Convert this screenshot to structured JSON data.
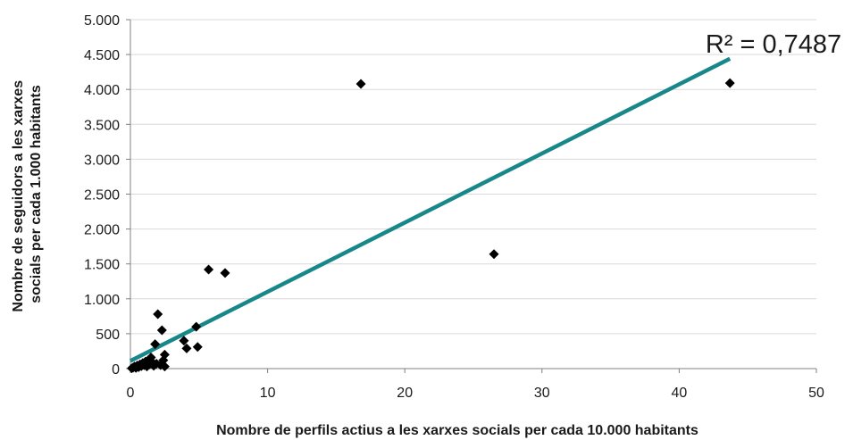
{
  "chart_data": {
    "type": "scatter",
    "title": "",
    "xlabel": "Nombre de perfils actius a les xarxes socials per cada 10.000 habitants",
    "ylabel_lines": [
      "Nombre de seguidors a les xarxes",
      "socials per cada 1.000 habitants"
    ],
    "xlim": [
      0,
      50
    ],
    "ylim": [
      0,
      5000
    ],
    "x_ticks": [
      0,
      10,
      20,
      30,
      40,
      50
    ],
    "x_tick_labels": [
      "0",
      "10",
      "20",
      "30",
      "40",
      "50"
    ],
    "y_ticks": [
      0,
      500,
      1000,
      1500,
      2000,
      2500,
      3000,
      3500,
      4000,
      4500,
      5000
    ],
    "y_tick_labels": [
      "0",
      "500",
      "1.000",
      "1.500",
      "2.000",
      "2.500",
      "3.000",
      "3.500",
      "4.000",
      "4.500",
      "5.000"
    ],
    "grid": "horizontal",
    "legend": "none",
    "marker": "diamond",
    "marker_color": "#000000",
    "trendline_color": "#17878a",
    "points": [
      {
        "x": 0.1,
        "y": 5
      },
      {
        "x": 0.2,
        "y": 15
      },
      {
        "x": 0.3,
        "y": 30
      },
      {
        "x": 0.4,
        "y": 10
      },
      {
        "x": 0.5,
        "y": 45
      },
      {
        "x": 0.6,
        "y": 20
      },
      {
        "x": 0.7,
        "y": 60
      },
      {
        "x": 0.8,
        "y": 35
      },
      {
        "x": 0.9,
        "y": 80
      },
      {
        "x": 1.0,
        "y": 50
      },
      {
        "x": 1.1,
        "y": 100
      },
      {
        "x": 1.2,
        "y": 30
      },
      {
        "x": 1.3,
        "y": 120
      },
      {
        "x": 1.4,
        "y": 60
      },
      {
        "x": 1.5,
        "y": 160
      },
      {
        "x": 1.6,
        "y": 90
      },
      {
        "x": 1.7,
        "y": 40
      },
      {
        "x": 1.8,
        "y": 350
      },
      {
        "x": 1.9,
        "y": 70
      },
      {
        "x": 2.0,
        "y": 780
      },
      {
        "x": 2.2,
        "y": 50
      },
      {
        "x": 2.3,
        "y": 550
      },
      {
        "x": 2.4,
        "y": 120
      },
      {
        "x": 2.5,
        "y": 30
      },
      {
        "x": 2.5,
        "y": 200
      },
      {
        "x": 3.9,
        "y": 400
      },
      {
        "x": 4.1,
        "y": 290
      },
      {
        "x": 4.8,
        "y": 600
      },
      {
        "x": 4.9,
        "y": 310
      },
      {
        "x": 5.7,
        "y": 1420
      },
      {
        "x": 6.9,
        "y": 1370
      },
      {
        "x": 16.8,
        "y": 4080
      },
      {
        "x": 26.5,
        "y": 1640
      },
      {
        "x": 43.7,
        "y": 4090
      }
    ],
    "trendline": {
      "x": [
        0,
        43.7
      ],
      "y": [
        110,
        4440
      ]
    },
    "annotation": "R² = 0,7487"
  }
}
